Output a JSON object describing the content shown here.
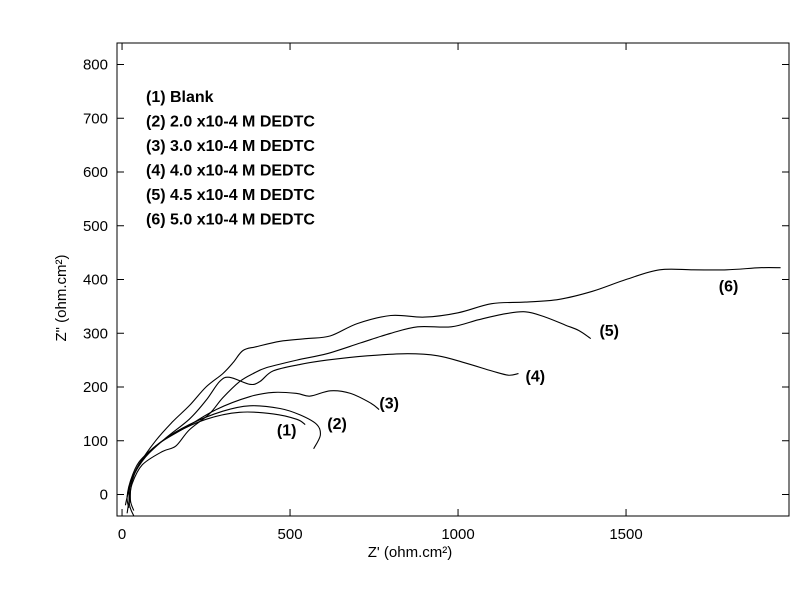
{
  "chart_data": {
    "type": "line",
    "xlabel": "Z' (ohm.cm²)",
    "ylabel": "Z\" (ohm.cm²)",
    "xlim": [
      -15,
      1985
    ],
    "ylim": [
      -40,
      840
    ],
    "xticks": [
      0,
      500,
      1000,
      1500
    ],
    "yticks": [
      0,
      100,
      200,
      300,
      400,
      500,
      600,
      700,
      800
    ],
    "grid": false,
    "legend_placement": "top-left",
    "legend": [
      "(1) Blank",
      "(2) 2.0 x10-4 M DEDTC",
      "(3) 3.0 x10-4 M DEDTC",
      "(4) 4.0 x10-4 M DEDTC",
      "(5) 4.5 x10-4 M DEDTC",
      "(6) 5.0 x10-4 M DEDTC"
    ],
    "series": [
      {
        "name": "(1)",
        "label_at": [
          490,
          110
        ],
        "points": [
          [
            20,
            -25
          ],
          [
            15,
            -5
          ],
          [
            25,
            25
          ],
          [
            50,
            60
          ],
          [
            100,
            90
          ],
          [
            160,
            115
          ],
          [
            250,
            140
          ],
          [
            350,
            153
          ],
          [
            450,
            150
          ],
          [
            520,
            140
          ],
          [
            545,
            130
          ]
        ]
      },
      {
        "name": "(2)",
        "label_at": [
          640,
          122
        ],
        "points": [
          [
            35,
            -30
          ],
          [
            25,
            -10
          ],
          [
            30,
            25
          ],
          [
            60,
            65
          ],
          [
            120,
            100
          ],
          [
            200,
            130
          ],
          [
            300,
            155
          ],
          [
            380,
            165
          ],
          [
            470,
            160
          ],
          [
            530,
            148
          ],
          [
            580,
            130
          ],
          [
            590,
            110
          ],
          [
            570,
            85
          ]
        ]
      },
      {
        "name": "(3)",
        "label_at": [
          795,
          160
        ],
        "points": [
          [
            25,
            -15
          ],
          [
            20,
            5
          ],
          [
            30,
            30
          ],
          [
            60,
            65
          ],
          [
            110,
            95
          ],
          [
            190,
            125
          ],
          [
            280,
            158
          ],
          [
            380,
            182
          ],
          [
            450,
            190
          ],
          [
            520,
            188
          ],
          [
            560,
            183
          ],
          [
            620,
            193
          ],
          [
            680,
            188
          ],
          [
            740,
            170
          ],
          [
            765,
            158
          ]
        ]
      },
      {
        "name": "(4)",
        "label_at": [
          1230,
          210
        ],
        "points": [
          [
            10,
            -20
          ],
          [
            15,
            -5
          ],
          [
            30,
            30
          ],
          [
            70,
            70
          ],
          [
            130,
            105
          ],
          [
            200,
            140
          ],
          [
            250,
            175
          ],
          [
            290,
            210
          ],
          [
            320,
            218
          ],
          [
            380,
            205
          ],
          [
            410,
            210
          ],
          [
            450,
            230
          ],
          [
            530,
            242
          ],
          [
            610,
            250
          ],
          [
            730,
            258
          ],
          [
            850,
            262
          ],
          [
            940,
            258
          ],
          [
            1020,
            245
          ],
          [
            1100,
            230
          ],
          [
            1150,
            222
          ],
          [
            1180,
            225
          ]
        ]
      },
      {
        "name": "(5)",
        "label_at": [
          1450,
          295
        ],
        "points": [
          [
            15,
            -35
          ],
          [
            20,
            -15
          ],
          [
            30,
            20
          ],
          [
            60,
            55
          ],
          [
            120,
            80
          ],
          [
            160,
            90
          ],
          [
            200,
            120
          ],
          [
            260,
            150
          ],
          [
            300,
            180
          ],
          [
            350,
            210
          ],
          [
            390,
            225
          ],
          [
            430,
            236
          ],
          [
            520,
            250
          ],
          [
            610,
            262
          ],
          [
            710,
            282
          ],
          [
            800,
            300
          ],
          [
            880,
            312
          ],
          [
            980,
            312
          ],
          [
            1060,
            325
          ],
          [
            1130,
            335
          ],
          [
            1200,
            340
          ],
          [
            1260,
            330
          ],
          [
            1320,
            315
          ],
          [
            1360,
            305
          ],
          [
            1395,
            290
          ]
        ]
      },
      {
        "name": "(6)",
        "label_at": [
          1805,
          378
        ],
        "points": [
          [
            35,
            -40
          ],
          [
            22,
            -18
          ],
          [
            25,
            20
          ],
          [
            50,
            55
          ],
          [
            100,
            100
          ],
          [
            150,
            135
          ],
          [
            200,
            165
          ],
          [
            250,
            200
          ],
          [
            300,
            225
          ],
          [
            330,
            245
          ],
          [
            360,
            268
          ],
          [
            400,
            275
          ],
          [
            470,
            285
          ],
          [
            550,
            290
          ],
          [
            620,
            295
          ],
          [
            700,
            318
          ],
          [
            800,
            333
          ],
          [
            900,
            330
          ],
          [
            1000,
            338
          ],
          [
            1100,
            355
          ],
          [
            1200,
            358
          ],
          [
            1300,
            363
          ],
          [
            1400,
            378
          ],
          [
            1500,
            400
          ],
          [
            1600,
            418
          ],
          [
            1700,
            418
          ],
          [
            1800,
            418
          ],
          [
            1900,
            422
          ],
          [
            1960,
            422
          ]
        ]
      }
    ]
  }
}
